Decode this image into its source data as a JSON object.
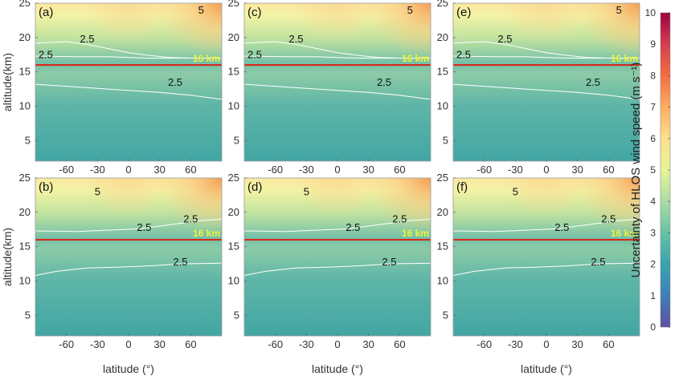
{
  "chart_data": {
    "type": "heatmap",
    "panels": [
      {
        "label": "(a)",
        "contour_labels": [
          "5",
          "2.5",
          "2.5",
          "2.5"
        ],
        "line_label": "16 km"
      },
      {
        "label": "(b)",
        "contour_labels": [
          "5",
          "2.5",
          "2.5",
          "2.5"
        ],
        "line_label": "16 km"
      },
      {
        "label": "(c)",
        "contour_labels": [
          "5",
          "2.5",
          "2.5",
          "2.5"
        ],
        "line_label": "16 km"
      },
      {
        "label": "(d)",
        "contour_labels": [
          "5",
          "2.5",
          "2.5",
          "2.5"
        ],
        "line_label": "16 km"
      },
      {
        "label": "(e)",
        "contour_labels": [
          "5",
          "2.5",
          "2.5",
          "2.5"
        ],
        "line_label": "16 km"
      },
      {
        "label": "(f)",
        "contour_labels": [
          "5",
          "2.5",
          "2.5",
          "2.5"
        ],
        "line_label": "16 km"
      }
    ],
    "xlabel": "latitude (°)",
    "ylabel": "altitude(km)",
    "xticks": [
      "-60",
      "-30",
      "0",
      "30",
      "60"
    ],
    "xtick_values": [
      -60,
      -30,
      0,
      30,
      60
    ],
    "yticks": [
      "5",
      "10",
      "15",
      "20",
      "25"
    ],
    "ytick_values": [
      5,
      10,
      15,
      20,
      25
    ],
    "xlim": [
      -90,
      90
    ],
    "ylim": [
      2,
      25
    ],
    "reference_altitude": 16,
    "colorbar": {
      "label": "Uncertainty of HLOS wind speed (m s⁻¹)",
      "ticks": [
        "0",
        "1",
        "2",
        "3",
        "4",
        "5",
        "6",
        "7",
        "8",
        "9",
        "10"
      ],
      "range": [
        0,
        10
      ]
    },
    "colors": {
      "reference_line": "#d62a1c",
      "line_label": "#f1f23a",
      "contour": "#ffffff"
    }
  }
}
